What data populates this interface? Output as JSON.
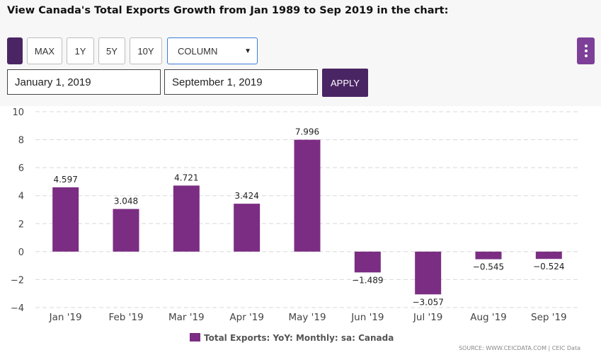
{
  "page": {
    "title": "View Canada's Total Exports Growth from Jan 1989 to Sep 2019 in the chart:"
  },
  "controls": {
    "range_buttons": [
      "MAX",
      "1Y",
      "5Y",
      "10Y"
    ],
    "chart_type": "COLUMN",
    "start_date": "January 1, 2019",
    "end_date": "September 1, 2019",
    "apply_label": "APPLY"
  },
  "colors": {
    "accent": "#7d3f98",
    "accent_dark": "#4a2563",
    "bar": "#7b2d83"
  },
  "chart_data": {
    "type": "bar",
    "categories": [
      "Jan '19",
      "Feb '19",
      "Mar '19",
      "Apr '19",
      "May '19",
      "Jun '19",
      "Jul '19",
      "Aug '19",
      "Sep '19"
    ],
    "values": [
      4.597,
      3.048,
      4.721,
      3.424,
      7.996,
      -1.489,
      -3.057,
      -0.545,
      -0.524
    ],
    "value_labels": [
      "4.597",
      "3.048",
      "4.721",
      "3.424",
      "7.996",
      "−1.489",
      "−3.057",
      "−0.545",
      "−0.524"
    ],
    "ylim": [
      -4,
      10
    ],
    "yticks": [
      10,
      8,
      6,
      4,
      2,
      0,
      -2,
      -4
    ],
    "ytick_labels": [
      "10",
      "8",
      "6",
      "4",
      "2",
      "0",
      "−2",
      "−4"
    ],
    "grid": true,
    "legend": "Total Exports: YoY: Monthly: sa: Canada",
    "source": "SOURCE: WWW.CEICDATA.COM | CEIC Data",
    "xlabel": "",
    "ylabel": ""
  }
}
